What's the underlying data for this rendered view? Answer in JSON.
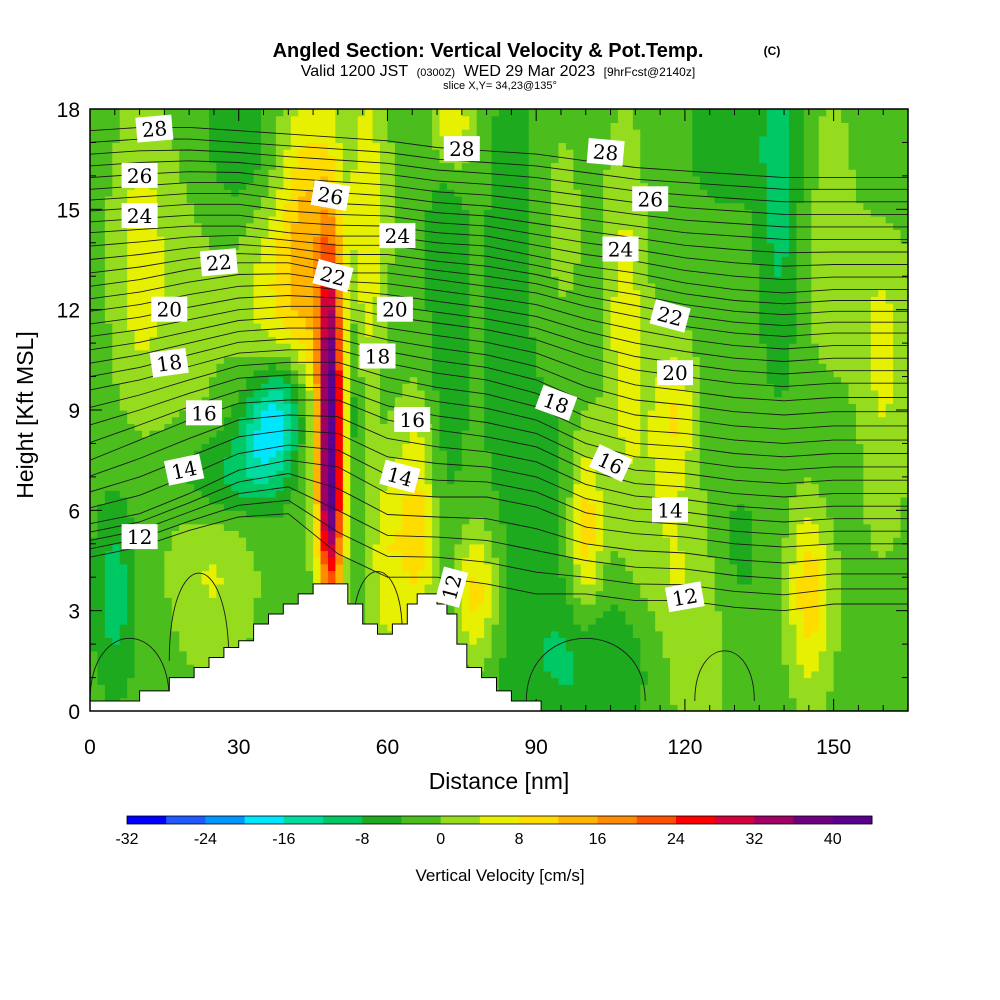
{
  "title": "Angled Section: Vertical Velocity & Pot.Temp.",
  "title_tag": "(C)",
  "subtitle_a": "Valid 1200 JST",
  "subtitle_b": "(0300Z)",
  "subtitle_c": "WED 29 Mar 2023",
  "subtitle_d": "[9hrFcst@2140z]",
  "slice_line": "slice X,Y= 34,23@135°",
  "chart_data": {
    "type": "heatmap",
    "xlabel": "Distance [nm]",
    "ylabel": "Height [Kft MSL]",
    "xlim": [
      0,
      165
    ],
    "ylim": [
      0,
      18
    ],
    "x_ticks": [
      0,
      30,
      60,
      90,
      120,
      150
    ],
    "y_ticks": [
      0,
      3,
      6,
      9,
      12,
      15,
      18
    ],
    "x_tick_labels": [
      "0",
      "30",
      "60",
      "90",
      "120",
      "150"
    ],
    "y_tick_labels": [
      "0",
      "3",
      "6",
      "9",
      "12",
      "15",
      "18"
    ],
    "colorbar": {
      "label": "Vertical Velocity [cm/s]",
      "min": -32,
      "max": 44,
      "step": 4,
      "tick_values": [
        -32,
        -24,
        -16,
        -8,
        0,
        8,
        16,
        24,
        32,
        40
      ],
      "tick_labels": [
        "-32",
        "-24",
        "-16",
        "-8",
        "0",
        "8",
        "16",
        "24",
        "32",
        "40"
      ],
      "colors": [
        "#0000ff",
        "#1e5aff",
        "#0096ff",
        "#00e6ff",
        "#00dca0",
        "#00c864",
        "#1eaa1e",
        "#4bbe1e",
        "#96dc1e",
        "#e6f000",
        "#ffdc00",
        "#ffb400",
        "#ff8c00",
        "#ff5000",
        "#ff0000",
        "#d2003c",
        "#a00064",
        "#6e0082",
        "#5a008c"
      ]
    },
    "terrain": [
      [
        0,
        0.3
      ],
      [
        10,
        0.3
      ],
      [
        10,
        0.6
      ],
      [
        16,
        0.6
      ],
      [
        16,
        1.0
      ],
      [
        21,
        1.0
      ],
      [
        21,
        1.3
      ],
      [
        24,
        1.3
      ],
      [
        24,
        1.6
      ],
      [
        27,
        1.6
      ],
      [
        27,
        1.9
      ],
      [
        30,
        1.9
      ],
      [
        30,
        2.1
      ],
      [
        33,
        2.1
      ],
      [
        33,
        2.6
      ],
      [
        36,
        2.6
      ],
      [
        36,
        2.9
      ],
      [
        39,
        2.9
      ],
      [
        39,
        3.2
      ],
      [
        42,
        3.2
      ],
      [
        42,
        3.5
      ],
      [
        45,
        3.5
      ],
      [
        45,
        3.8
      ],
      [
        52,
        3.8
      ],
      [
        52,
        3.2
      ],
      [
        55,
        3.2
      ],
      [
        55,
        2.6
      ],
      [
        58,
        2.6
      ],
      [
        58,
        2.3
      ],
      [
        61,
        2.3
      ],
      [
        61,
        2.6
      ],
      [
        64,
        2.6
      ],
      [
        64,
        3.2
      ],
      [
        66,
        3.2
      ],
      [
        66,
        3.5
      ],
      [
        70,
        3.5
      ],
      [
        70,
        3.2
      ],
      [
        72,
        3.2
      ],
      [
        72,
        2.9
      ],
      [
        74,
        2.9
      ],
      [
        74,
        2.0
      ],
      [
        76,
        2.0
      ],
      [
        76,
        1.3
      ],
      [
        79,
        1.3
      ],
      [
        79,
        1.0
      ],
      [
        82,
        1.0
      ],
      [
        82,
        0.6
      ],
      [
        85,
        0.6
      ],
      [
        85,
        0.3
      ],
      [
        91,
        0.3
      ],
      [
        91,
        0.0
      ],
      [
        165,
        0.0
      ]
    ],
    "velocity_blobs": [
      {
        "x": 48.5,
        "y": 8.5,
        "sx": 1.8,
        "sy": 3.8,
        "w": 42
      },
      {
        "x": 48.5,
        "y": 6.0,
        "sx": 1.8,
        "sy": 1.5,
        "w": 8
      },
      {
        "x": 36,
        "y": 8.5,
        "sx": 4,
        "sy": 1.3,
        "w": -17
      },
      {
        "x": 40,
        "y": 9.5,
        "sx": 3,
        "sy": 1.2,
        "w": -8
      },
      {
        "x": 27,
        "y": 7.0,
        "sx": 7,
        "sy": 1.0,
        "w": -8
      },
      {
        "x": 44,
        "y": 14.0,
        "sx": 4,
        "sy": 3.5,
        "w": 14
      },
      {
        "x": 37,
        "y": 12.0,
        "sx": 5,
        "sy": 2.5,
        "w": 8
      },
      {
        "x": 56,
        "y": 13.0,
        "sx": 3,
        "sy": 5.0,
        "w": 10
      },
      {
        "x": 58,
        "y": 8.5,
        "sx": 2.5,
        "sy": 3.0,
        "w": -6
      },
      {
        "x": 53,
        "y": 9.5,
        "sx": 1.5,
        "sy": 2.5,
        "w": -8
      },
      {
        "x": 66,
        "y": 5.5,
        "sx": 2.5,
        "sy": 2.5,
        "w": 12
      },
      {
        "x": 60,
        "y": 5.0,
        "sx": 2.5,
        "sy": 2.5,
        "w": 10
      },
      {
        "x": 78,
        "y": 3.5,
        "sx": 3,
        "sy": 1.5,
        "w": 12
      },
      {
        "x": 25,
        "y": 4.0,
        "sx": 6,
        "sy": 2.0,
        "w": 6
      },
      {
        "x": 20,
        "y": 12.0,
        "sx": 6,
        "sy": 4.0,
        "w": 3
      },
      {
        "x": 10,
        "y": 13.5,
        "sx": 4,
        "sy": 3.0,
        "w": 8
      },
      {
        "x": 30,
        "y": 17.0,
        "sx": 5,
        "sy": 1.5,
        "w": -6
      },
      {
        "x": 73,
        "y": 17.5,
        "sx": 3,
        "sy": 1.0,
        "w": 12
      },
      {
        "x": 72,
        "y": 13.0,
        "sx": 3,
        "sy": 5.0,
        "w": -5
      },
      {
        "x": 85,
        "y": 14.0,
        "sx": 4,
        "sy": 5.0,
        "w": -4
      },
      {
        "x": 92,
        "y": 6.5,
        "sx": 8,
        "sy": 2.5,
        "w": -4
      },
      {
        "x": 100,
        "y": 5.5,
        "sx": 2.5,
        "sy": 2.0,
        "w": 14
      },
      {
        "x": 108,
        "y": 11.5,
        "sx": 3,
        "sy": 4.0,
        "w": 8
      },
      {
        "x": 118,
        "y": 9.0,
        "sx": 3,
        "sy": 1.5,
        "w": 8
      },
      {
        "x": 115,
        "y": 6.0,
        "sx": 5,
        "sy": 3.0,
        "w": 4
      },
      {
        "x": 100,
        "y": 1.5,
        "sx": 12,
        "sy": 1.5,
        "w": -7
      },
      {
        "x": 122,
        "y": 2.5,
        "sx": 6,
        "sy": 2.5,
        "w": 6
      },
      {
        "x": 145,
        "y": 3.5,
        "sx": 3,
        "sy": 2.0,
        "w": 12
      },
      {
        "x": 139,
        "y": 16.0,
        "sx": 3,
        "sy": 4.0,
        "w": -8
      },
      {
        "x": 150,
        "y": 12.0,
        "sx": 4,
        "sy": 5.0,
        "w": 5
      },
      {
        "x": 160,
        "y": 11.0,
        "sx": 4,
        "sy": 4.0,
        "w": 7
      },
      {
        "x": 130,
        "y": 4.5,
        "sx": 4,
        "sy": 2.0,
        "w": -4
      },
      {
        "x": 150,
        "y": 8.0,
        "sx": 4,
        "sy": 2.0,
        "w": -5
      },
      {
        "x": 5,
        "y": 3.5,
        "sx": 3,
        "sy": 2.0,
        "w": -8
      },
      {
        "x": 128,
        "y": 17.0,
        "sx": 6,
        "sy": 1.5,
        "w": -4
      },
      {
        "x": 95,
        "y": 14.5,
        "sx": 4,
        "sy": 3.0,
        "w": 3
      },
      {
        "x": 160,
        "y": 16.5,
        "sx": 4,
        "sy": 2.0,
        "w": -4
      }
    ],
    "velocity_background": -2,
    "theta_levels": [
      12,
      14,
      16,
      18,
      20,
      22,
      24,
      26,
      28
    ],
    "isentropes": [
      [
        [
          0,
          4.6
        ],
        [
          10,
          4.9
        ],
        [
          20,
          5.4
        ],
        [
          30,
          5.8
        ],
        [
          40,
          5.9
        ],
        [
          50,
          4.7
        ],
        [
          60,
          4.0
        ],
        [
          70,
          4.0
        ],
        [
          80,
          3.8
        ],
        [
          90,
          3.5
        ],
        [
          100,
          3.5
        ],
        [
          110,
          3.3
        ],
        [
          120,
          3.3
        ],
        [
          130,
          3.1
        ],
        [
          140,
          3.0
        ],
        [
          150,
          3.2
        ],
        [
          165,
          3.2
        ]
      ],
      [
        [
          0,
          5.6
        ],
        [
          10,
          5.9
        ],
        [
          20,
          6.5
        ],
        [
          30,
          7.2
        ],
        [
          40,
          7.5
        ],
        [
          50,
          7.3
        ],
        [
          60,
          6.5
        ],
        [
          70,
          6.4
        ],
        [
          80,
          6.4
        ],
        [
          90,
          6.1
        ],
        [
          100,
          5.5
        ],
        [
          110,
          5.3
        ],
        [
          120,
          5.2
        ],
        [
          130,
          5.0
        ],
        [
          140,
          4.9
        ],
        [
          150,
          5.0
        ],
        [
          165,
          5.0
        ]
      ],
      [
        [
          0,
          7.5
        ],
        [
          10,
          8.1
        ],
        [
          20,
          8.7
        ],
        [
          30,
          9.2
        ],
        [
          40,
          9.3
        ],
        [
          50,
          9.3
        ],
        [
          60,
          8.7
        ],
        [
          70,
          8.4
        ],
        [
          80,
          8.2
        ],
        [
          90,
          7.9
        ],
        [
          100,
          7.2
        ],
        [
          110,
          6.8
        ],
        [
          120,
          6.7
        ],
        [
          130,
          6.5
        ],
        [
          140,
          6.4
        ],
        [
          150,
          6.5
        ],
        [
          165,
          6.5
        ]
      ],
      [
        [
          0,
          9.6
        ],
        [
          10,
          9.9
        ],
        [
          20,
          10.3
        ],
        [
          30,
          10.7
        ],
        [
          40,
          10.8
        ],
        [
          50,
          10.8
        ],
        [
          60,
          10.4
        ],
        [
          70,
          10.1
        ],
        [
          80,
          9.9
        ],
        [
          90,
          9.5
        ],
        [
          100,
          8.8
        ],
        [
          110,
          8.4
        ],
        [
          120,
          8.3
        ],
        [
          130,
          8.1
        ],
        [
          140,
          8.0
        ],
        [
          150,
          8.1
        ],
        [
          165,
          8.1
        ]
      ],
      [
        [
          0,
          11.2
        ],
        [
          10,
          11.4
        ],
        [
          20,
          11.7
        ],
        [
          30,
          12.0
        ],
        [
          40,
          12.1
        ],
        [
          50,
          12.1
        ],
        [
          60,
          11.8
        ],
        [
          70,
          11.6
        ],
        [
          80,
          11.4
        ],
        [
          90,
          11.1
        ],
        [
          100,
          10.6
        ],
        [
          110,
          10.2
        ],
        [
          120,
          10.0
        ],
        [
          130,
          9.8
        ],
        [
          140,
          9.7
        ],
        [
          150,
          9.8
        ],
        [
          165,
          9.8
        ]
      ],
      [
        [
          0,
          12.7
        ],
        [
          10,
          12.9
        ],
        [
          20,
          13.2
        ],
        [
          30,
          13.4
        ],
        [
          40,
          13.4
        ],
        [
          50,
          13.1
        ],
        [
          60,
          13.1
        ],
        [
          70,
          12.9
        ],
        [
          80,
          12.7
        ],
        [
          90,
          12.5
        ],
        [
          100,
          12.1
        ],
        [
          110,
          11.8
        ],
        [
          120,
          11.5
        ],
        [
          130,
          11.3
        ],
        [
          140,
          11.2
        ],
        [
          150,
          11.3
        ],
        [
          165,
          11.3
        ]
      ],
      [
        [
          0,
          14.3
        ],
        [
          10,
          14.4
        ],
        [
          20,
          14.5
        ],
        [
          30,
          14.5
        ],
        [
          40,
          14.3
        ],
        [
          50,
          14.2
        ],
        [
          60,
          14.2
        ],
        [
          70,
          14.0
        ],
        [
          80,
          13.9
        ],
        [
          90,
          13.6
        ],
        [
          100,
          13.3
        ],
        [
          110,
          13.1
        ],
        [
          120,
          12.8
        ],
        [
          130,
          12.6
        ],
        [
          140,
          12.5
        ],
        [
          150,
          12.6
        ],
        [
          165,
          12.6
        ]
      ],
      [
        [
          0,
          15.6
        ],
        [
          10,
          15.7
        ],
        [
          20,
          15.8
        ],
        [
          30,
          15.8
        ],
        [
          40,
          15.6
        ],
        [
          50,
          15.5
        ],
        [
          60,
          15.4
        ],
        [
          70,
          15.2
        ],
        [
          80,
          15.1
        ],
        [
          90,
          14.9
        ],
        [
          100,
          14.7
        ],
        [
          110,
          14.5
        ],
        [
          120,
          14.3
        ],
        [
          130,
          14.2
        ],
        [
          140,
          14.1
        ],
        [
          150,
          14.1
        ],
        [
          165,
          14.1
        ]
      ],
      [
        [
          0,
          17.0
        ],
        [
          10,
          17.1
        ],
        [
          20,
          17.1
        ],
        [
          30,
          17.0
        ],
        [
          40,
          16.9
        ],
        [
          50,
          16.8
        ],
        [
          60,
          16.7
        ],
        [
          70,
          16.5
        ],
        [
          80,
          16.4
        ],
        [
          90,
          16.3
        ],
        [
          100,
          16.1
        ],
        [
          110,
          15.9
        ],
        [
          120,
          15.8
        ],
        [
          130,
          15.7
        ],
        [
          140,
          15.6
        ],
        [
          150,
          15.6
        ],
        [
          165,
          15.6
        ]
      ]
    ],
    "contour_labels": [
      {
        "text": "28",
        "x": 13,
        "y": 17.4,
        "rot": -5
      },
      {
        "text": "26",
        "x": 10,
        "y": 16.0,
        "rot": 0
      },
      {
        "text": "24",
        "x": 10,
        "y": 14.8,
        "rot": 0
      },
      {
        "text": "22",
        "x": 26,
        "y": 13.4,
        "rot": -5
      },
      {
        "text": "20",
        "x": 16,
        "y": 12.0,
        "rot": 0
      },
      {
        "text": "18",
        "x": 16,
        "y": 10.4,
        "rot": -8
      },
      {
        "text": "16",
        "x": 23,
        "y": 8.9,
        "rot": 0
      },
      {
        "text": "14",
        "x": 19,
        "y": 7.2,
        "rot": -12
      },
      {
        "text": "12",
        "x": 10,
        "y": 5.2,
        "rot": 0
      },
      {
        "text": "26",
        "x": 48.5,
        "y": 15.4,
        "rot": 10
      },
      {
        "text": "24",
        "x": 62,
        "y": 14.2,
        "rot": 0
      },
      {
        "text": "22",
        "x": 49,
        "y": 13.0,
        "rot": 15
      },
      {
        "text": "20",
        "x": 61.5,
        "y": 12.0,
        "rot": 0
      },
      {
        "text": "18",
        "x": 58,
        "y": 10.6,
        "rot": 0
      },
      {
        "text": "16",
        "x": 65,
        "y": 8.7,
        "rot": 0
      },
      {
        "text": "14",
        "x": 62.5,
        "y": 7.0,
        "rot": 15
      },
      {
        "text": "12",
        "x": 73,
        "y": 3.7,
        "rot": -75
      },
      {
        "text": "28",
        "x": 75,
        "y": 16.8,
        "rot": 0
      },
      {
        "text": "28",
        "x": 104,
        "y": 16.7,
        "rot": 5
      },
      {
        "text": "26",
        "x": 113,
        "y": 15.3,
        "rot": 0
      },
      {
        "text": "24",
        "x": 107,
        "y": 13.8,
        "rot": 0
      },
      {
        "text": "22",
        "x": 117,
        "y": 11.8,
        "rot": 15
      },
      {
        "text": "20",
        "x": 118,
        "y": 10.1,
        "rot": 0
      },
      {
        "text": "18",
        "x": 94,
        "y": 9.2,
        "rot": 20
      },
      {
        "text": "16",
        "x": 105,
        "y": 7.4,
        "rot": 25
      },
      {
        "text": "14",
        "x": 117,
        "y": 6.0,
        "rot": 0
      },
      {
        "text": "12",
        "x": 120,
        "y": 3.4,
        "rot": -10
      }
    ]
  }
}
